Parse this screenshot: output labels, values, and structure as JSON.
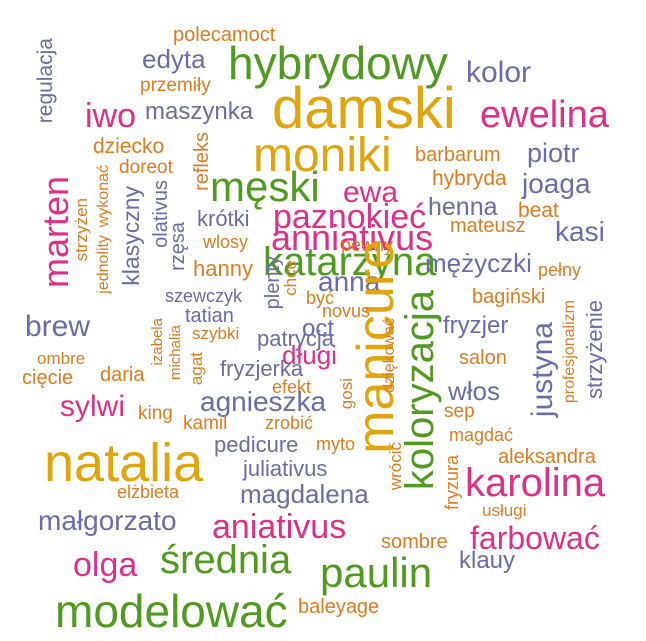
{
  "palette": {
    "orange": "#e07b20",
    "purple": "#6b6ba8",
    "green": "#4f9a1f",
    "pink": "#df2f86",
    "gold": "#e0a50c"
  },
  "words": [
    {
      "text": "polecamoct",
      "color": "orange"
    },
    {
      "text": "regulacja",
      "color": "purple"
    },
    {
      "text": "edyta",
      "color": "purple"
    },
    {
      "text": "hybrydowy",
      "color": "green"
    },
    {
      "text": "kolor",
      "color": "purple"
    },
    {
      "text": "przemiły",
      "color": "orange"
    },
    {
      "text": "damski",
      "color": "gold"
    },
    {
      "text": "iwo",
      "color": "pink"
    },
    {
      "text": "maszynka",
      "color": "purple"
    },
    {
      "text": "ewelina",
      "color": "pink"
    },
    {
      "text": "dziecko",
      "color": "orange"
    },
    {
      "text": "refleks",
      "color": "orange"
    },
    {
      "text": "moniki",
      "color": "gold"
    },
    {
      "text": "barbarum",
      "color": "orange"
    },
    {
      "text": "piotr",
      "color": "purple"
    },
    {
      "text": "doreot",
      "color": "orange"
    },
    {
      "text": "wykonać",
      "color": "orange"
    },
    {
      "text": "jednolity",
      "color": "orange"
    },
    {
      "text": "męski",
      "color": "green"
    },
    {
      "text": "hybryda",
      "color": "orange"
    },
    {
      "text": "joaga",
      "color": "purple"
    },
    {
      "text": "marten",
      "color": "pink"
    },
    {
      "text": "olativus",
      "color": "purple"
    },
    {
      "text": "ewa",
      "color": "pink"
    },
    {
      "text": "henna",
      "color": "purple"
    },
    {
      "text": "beat",
      "color": "orange"
    },
    {
      "text": "strzyżen",
      "color": "orange"
    },
    {
      "text": "klasyczny",
      "color": "purple"
    },
    {
      "text": "rzęsa",
      "color": "purple"
    },
    {
      "text": "krótki",
      "color": "purple"
    },
    {
      "text": "paznokieć",
      "color": "pink"
    },
    {
      "text": "mateusz",
      "color": "orange"
    },
    {
      "text": "anniativus",
      "color": "pink"
    },
    {
      "text": "kasi",
      "color": "purple"
    },
    {
      "text": "wlosy",
      "color": "orange"
    },
    {
      "text": "pewny",
      "color": "orange"
    },
    {
      "text": "katarzyna",
      "color": "green"
    },
    {
      "text": "mężyczki",
      "color": "purple"
    },
    {
      "text": "hanny",
      "color": "orange"
    },
    {
      "text": "anna",
      "color": "purple"
    },
    {
      "text": "pełny",
      "color": "orange"
    },
    {
      "text": "plenty",
      "color": "purple"
    },
    {
      "text": "chce",
      "color": "orange"
    },
    {
      "text": "manicure",
      "color": "gold"
    },
    {
      "text": "szewczyk",
      "color": "purple"
    },
    {
      "text": "być",
      "color": "orange"
    },
    {
      "text": "bagiński",
      "color": "orange"
    },
    {
      "text": "koloryzacja",
      "color": "green"
    },
    {
      "text": "brew",
      "color": "purple"
    },
    {
      "text": "tatian",
      "color": "purple"
    },
    {
      "text": "novus",
      "color": "orange"
    },
    {
      "text": "oct",
      "color": "purple"
    },
    {
      "text": "fryzjer",
      "color": "purple"
    },
    {
      "text": "justyna",
      "color": "purple"
    },
    {
      "text": "profesjonalizm",
      "color": "orange"
    },
    {
      "text": "strzyżenie",
      "color": "purple"
    },
    {
      "text": "izabela",
      "color": "orange"
    },
    {
      "text": "michalia",
      "color": "orange"
    },
    {
      "text": "szybki",
      "color": "orange"
    },
    {
      "text": "patrycja",
      "color": "purple"
    },
    {
      "text": "dziękować",
      "color": "orange"
    },
    {
      "text": "ombre",
      "color": "orange"
    },
    {
      "text": "długi",
      "color": "pink"
    },
    {
      "text": "salon",
      "color": "orange"
    },
    {
      "text": "cięcie",
      "color": "orange"
    },
    {
      "text": "daria",
      "color": "orange"
    },
    {
      "text": "agat",
      "color": "orange"
    },
    {
      "text": "fryzjerka",
      "color": "purple"
    },
    {
      "text": "sylwi",
      "color": "pink"
    },
    {
      "text": "efekt",
      "color": "orange"
    },
    {
      "text": "gosi",
      "color": "orange"
    },
    {
      "text": "włos",
      "color": "purple"
    },
    {
      "text": "king",
      "color": "orange"
    },
    {
      "text": "agnieszka",
      "color": "purple"
    },
    {
      "text": "sep",
      "color": "orange"
    },
    {
      "text": "kamil",
      "color": "orange"
    },
    {
      "text": "zrobić",
      "color": "orange"
    },
    {
      "text": "magdać",
      "color": "orange"
    },
    {
      "text": "pedicure",
      "color": "purple"
    },
    {
      "text": "myto",
      "color": "orange"
    },
    {
      "text": "wrócić",
      "color": "orange"
    },
    {
      "text": "natalia",
      "color": "gold"
    },
    {
      "text": "aleksandra",
      "color": "orange"
    },
    {
      "text": "juliativus",
      "color": "purple"
    },
    {
      "text": "fryzura",
      "color": "orange"
    },
    {
      "text": "karolina",
      "color": "pink"
    },
    {
      "text": "elżbieta",
      "color": "orange"
    },
    {
      "text": "magdalena",
      "color": "purple"
    },
    {
      "text": "usługi",
      "color": "orange"
    },
    {
      "text": "małgorzato",
      "color": "purple"
    },
    {
      "text": "aniativus",
      "color": "pink"
    },
    {
      "text": "sombre",
      "color": "orange"
    },
    {
      "text": "farbować",
      "color": "pink"
    },
    {
      "text": "olga",
      "color": "pink"
    },
    {
      "text": "średnia",
      "color": "green"
    },
    {
      "text": "klauy",
      "color": "purple"
    },
    {
      "text": "paulin",
      "color": "green"
    },
    {
      "text": "modelować",
      "color": "green"
    },
    {
      "text": "baleyage",
      "color": "orange"
    }
  ]
}
